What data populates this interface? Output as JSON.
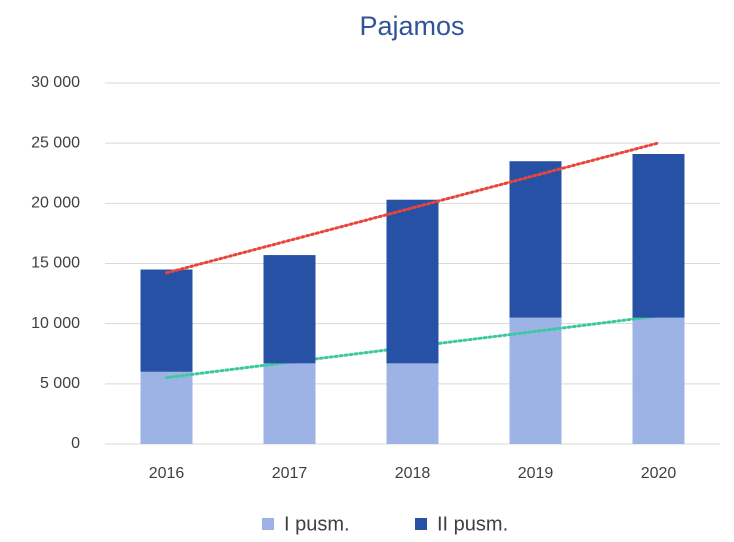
{
  "chart_data": {
    "type": "stacked_bar",
    "title": "Pajamos",
    "categories": [
      "2016",
      "2017",
      "2018",
      "2019",
      "2020"
    ],
    "series": [
      {
        "name": "I pusm.",
        "color": "#9db3e6",
        "values": [
          6000,
          6700,
          6700,
          10500,
          10500
        ],
        "trendline_color": "#3cc9a0"
      },
      {
        "name": "II pusm.",
        "color": "#2751a5",
        "values": [
          8500,
          9000,
          13600,
          13000,
          13600
        ],
        "trendline_color": "#e8463c"
      }
    ],
    "ylim": [
      0,
      30000
    ],
    "yticks": [
      0,
      {
        "value": 5000,
        "label": "5 000"
      },
      {
        "value": 10000,
        "label": "10 000"
      },
      {
        "value": 15000,
        "label": "15 000"
      },
      {
        "value": 20000,
        "label": "20 000"
      },
      {
        "value": 25000,
        "label": "25 000"
      },
      {
        "value": 30000,
        "label": "30 000"
      }
    ],
    "grid": true,
    "legend": "bottom"
  }
}
